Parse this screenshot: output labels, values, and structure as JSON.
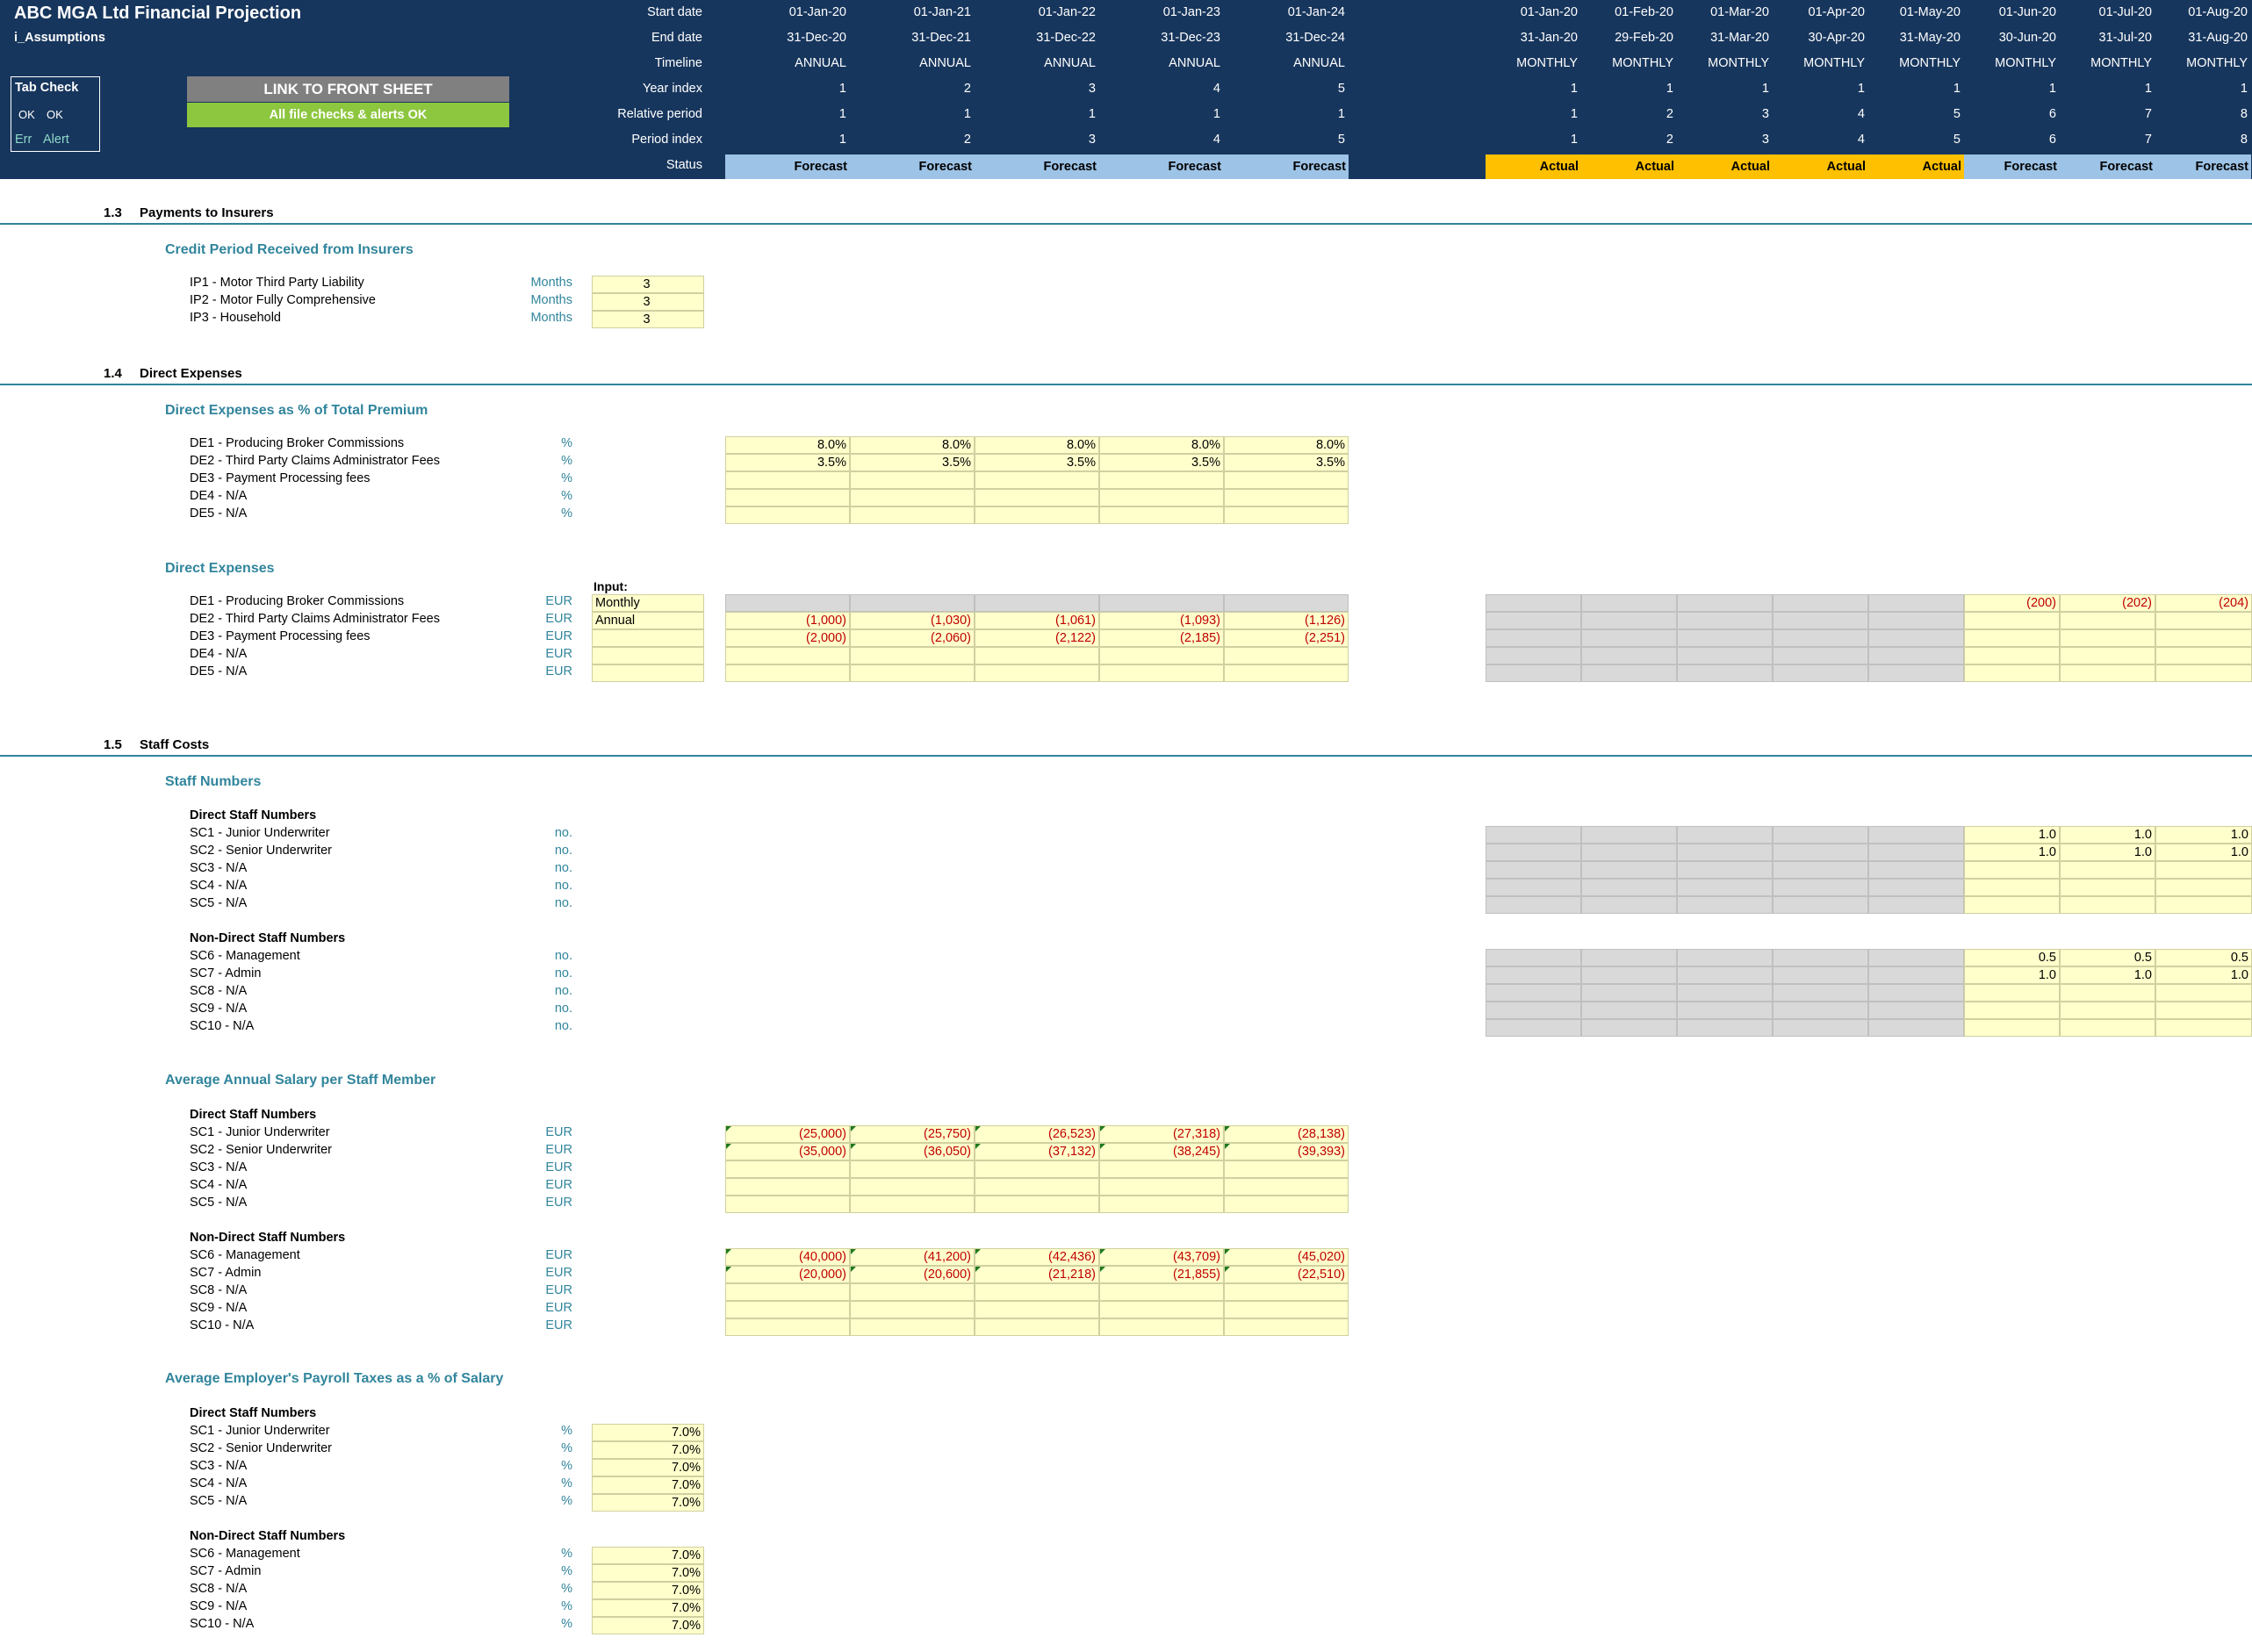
{
  "title": "ABC MGA Ltd Financial Projection",
  "sheet_name": "i_Assumptions",
  "tab_check": {
    "title": "Tab Check",
    "ok1": "OK",
    "ok2": "OK",
    "err": "Err",
    "alert": "Alert"
  },
  "link_button": "LINK TO FRONT SHEET",
  "checks_ok": "All file checks & alerts OK",
  "header_labels": [
    "Start date",
    "End date",
    "Timeline",
    "Year index",
    "Relative period",
    "Period index",
    "Status"
  ],
  "annual_columns": [
    {
      "start": "01-Jan-20",
      "end": "31-Dec-20",
      "timeline": "ANNUAL",
      "year": "1",
      "rel": "1",
      "period": "1",
      "status": "Forecast"
    },
    {
      "start": "01-Jan-21",
      "end": "31-Dec-21",
      "timeline": "ANNUAL",
      "year": "2",
      "rel": "1",
      "period": "2",
      "status": "Forecast"
    },
    {
      "start": "01-Jan-22",
      "end": "31-Dec-22",
      "timeline": "ANNUAL",
      "year": "3",
      "rel": "1",
      "period": "3",
      "status": "Forecast"
    },
    {
      "start": "01-Jan-23",
      "end": "31-Dec-23",
      "timeline": "ANNUAL",
      "year": "4",
      "rel": "1",
      "period": "4",
      "status": "Forecast"
    },
    {
      "start": "01-Jan-24",
      "end": "31-Dec-24",
      "timeline": "ANNUAL",
      "year": "5",
      "rel": "1",
      "period": "5",
      "status": "Forecast"
    }
  ],
  "monthly_columns": [
    {
      "start": "01-Jan-20",
      "end": "31-Jan-20",
      "timeline": "MONTHLY",
      "year": "1",
      "rel": "1",
      "period": "1",
      "status": "Actual"
    },
    {
      "start": "01-Feb-20",
      "end": "29-Feb-20",
      "timeline": "MONTHLY",
      "year": "1",
      "rel": "2",
      "period": "2",
      "status": "Actual"
    },
    {
      "start": "01-Mar-20",
      "end": "31-Mar-20",
      "timeline": "MONTHLY",
      "year": "1",
      "rel": "3",
      "period": "3",
      "status": "Actual"
    },
    {
      "start": "01-Apr-20",
      "end": "30-Apr-20",
      "timeline": "MONTHLY",
      "year": "1",
      "rel": "4",
      "period": "4",
      "status": "Actual"
    },
    {
      "start": "01-May-20",
      "end": "31-May-20",
      "timeline": "MONTHLY",
      "year": "1",
      "rel": "5",
      "period": "5",
      "status": "Actual"
    },
    {
      "start": "01-Jun-20",
      "end": "30-Jun-20",
      "timeline": "MONTHLY",
      "year": "1",
      "rel": "6",
      "period": "6",
      "status": "Forecast"
    },
    {
      "start": "01-Jul-20",
      "end": "31-Jul-20",
      "timeline": "MONTHLY",
      "year": "1",
      "rel": "7",
      "period": "7",
      "status": "Forecast"
    },
    {
      "start": "01-Aug-20",
      "end": "31-Aug-20",
      "timeline": "MONTHLY",
      "year": "1",
      "rel": "8",
      "period": "8",
      "status": "Forecast"
    }
  ],
  "colors": {
    "header": "#17365d",
    "forecast": "#9dc3e6",
    "actual": "#ffc000",
    "teal": "#31859c",
    "input": "#ffffcc",
    "grey": "#d9d9d9",
    "green": "#8dc63f",
    "neg": "#c00000"
  },
  "s13": {
    "num": "1.3",
    "title": "Payments to Insurers",
    "sub": "Credit Period Received from Insurers",
    "rows": [
      {
        "label": "IP1 - Motor Third Party Liability",
        "unit": "Months",
        "value": "3"
      },
      {
        "label": "IP2 - Motor Fully Comprehensive",
        "unit": "Months",
        "value": "3"
      },
      {
        "label": "IP3 - Household",
        "unit": "Months",
        "value": "3"
      }
    ]
  },
  "s14": {
    "num": "1.4",
    "title": "Direct Expenses",
    "sub1": "Direct Expenses as % of Total Premium",
    "pct_rows": [
      {
        "label": "DE1 - Producing Broker Commissions",
        "unit": "%",
        "vals": [
          "8.0%",
          "8.0%",
          "8.0%",
          "8.0%",
          "8.0%"
        ]
      },
      {
        "label": "DE2 - Third Party Claims Administrator Fees",
        "unit": "%",
        "vals": [
          "3.5%",
          "3.5%",
          "3.5%",
          "3.5%",
          "3.5%"
        ]
      },
      {
        "label": "DE3 - Payment Processing fees",
        "unit": "%",
        "vals": [
          "",
          "",
          "",
          "",
          ""
        ]
      },
      {
        "label": "DE4 - N/A",
        "unit": "%",
        "vals": [
          "",
          "",
          "",
          "",
          ""
        ]
      },
      {
        "label": "DE5 - N/A",
        "unit": "%",
        "vals": [
          "",
          "",
          "",
          "",
          ""
        ]
      }
    ],
    "sub2": "Direct Expenses",
    "input_label": "Input:",
    "eur_rows": [
      {
        "label": "DE1 - Producing Broker Commissions",
        "unit": "EUR",
        "input": "Monthly",
        "vals": [
          "",
          "",
          "",
          "",
          ""
        ],
        "monthly": [
          "",
          "",
          "",
          "",
          "",
          "(200)",
          "(202)",
          "(204)"
        ]
      },
      {
        "label": "DE2 - Third Party Claims Administrator Fees",
        "unit": "EUR",
        "input": "Annual",
        "vals": [
          "(1,000)",
          "(1,030)",
          "(1,061)",
          "(1,093)",
          "(1,126)"
        ],
        "monthly": [
          "",
          "",
          "",
          "",
          "",
          "",
          "",
          ""
        ]
      },
      {
        "label": "DE3 - Payment Processing fees",
        "unit": "EUR",
        "input": "",
        "vals": [
          "(2,000)",
          "(2,060)",
          "(2,122)",
          "(2,185)",
          "(2,251)"
        ],
        "monthly": [
          "",
          "",
          "",
          "",
          "",
          "",
          "",
          ""
        ]
      },
      {
        "label": "DE4 - N/A",
        "unit": "EUR",
        "input": "",
        "vals": [
          "",
          "",
          "",
          "",
          ""
        ],
        "monthly": [
          "",
          "",
          "",
          "",
          "",
          "",
          "",
          ""
        ]
      },
      {
        "label": "DE5 - N/A",
        "unit": "EUR",
        "input": "",
        "vals": [
          "",
          "",
          "",
          "",
          ""
        ],
        "monthly": [
          "",
          "",
          "",
          "",
          "",
          "",
          "",
          ""
        ]
      }
    ]
  },
  "s15": {
    "num": "1.5",
    "title": "Staff Costs",
    "sub_numbers": "Staff Numbers",
    "direct_title": "Direct Staff Numbers",
    "nondirect_title": "Non-Direct Staff Numbers",
    "num_direct": [
      {
        "label": "SC1 - Junior Underwriter",
        "unit": "no.",
        "monthly": [
          "",
          "",
          "",
          "",
          "",
          "1.0",
          "1.0",
          "1.0"
        ]
      },
      {
        "label": "SC2 - Senior Underwriter",
        "unit": "no.",
        "monthly": [
          "",
          "",
          "",
          "",
          "",
          "1.0",
          "1.0",
          "1.0"
        ]
      },
      {
        "label": "SC3 - N/A",
        "unit": "no.",
        "monthly": [
          "",
          "",
          "",
          "",
          "",
          "",
          "",
          ""
        ]
      },
      {
        "label": "SC4 - N/A",
        "unit": "no.",
        "monthly": [
          "",
          "",
          "",
          "",
          "",
          "",
          "",
          ""
        ]
      },
      {
        "label": "SC5 - N/A",
        "unit": "no.",
        "monthly": [
          "",
          "",
          "",
          "",
          "",
          "",
          "",
          ""
        ]
      }
    ],
    "num_nondirect": [
      {
        "label": "SC6 - Management",
        "unit": "no.",
        "monthly": [
          "",
          "",
          "",
          "",
          "",
          "0.5",
          "0.5",
          "0.5"
        ]
      },
      {
        "label": "SC7 - Admin",
        "unit": "no.",
        "monthly": [
          "",
          "",
          "",
          "",
          "",
          "1.0",
          "1.0",
          "1.0"
        ]
      },
      {
        "label": "SC8 - N/A",
        "unit": "no.",
        "monthly": [
          "",
          "",
          "",
          "",
          "",
          "",
          "",
          ""
        ]
      },
      {
        "label": "SC9 - N/A",
        "unit": "no.",
        "monthly": [
          "",
          "",
          "",
          "",
          "",
          "",
          "",
          ""
        ]
      },
      {
        "label": "SC10 - N/A",
        "unit": "no.",
        "monthly": [
          "",
          "",
          "",
          "",
          "",
          "",
          "",
          ""
        ]
      }
    ],
    "sub_salary": "Average Annual Salary per Staff Member",
    "sal_direct": [
      {
        "label": "SC1 - Junior Underwriter",
        "unit": "EUR",
        "vals": [
          "(25,000)",
          "(25,750)",
          "(26,523)",
          "(27,318)",
          "(28,138)"
        ]
      },
      {
        "label": "SC2 - Senior Underwriter",
        "unit": "EUR",
        "vals": [
          "(35,000)",
          "(36,050)",
          "(37,132)",
          "(38,245)",
          "(39,393)"
        ]
      },
      {
        "label": "SC3 - N/A",
        "unit": "EUR",
        "vals": [
          "",
          "",
          "",
          "",
          ""
        ]
      },
      {
        "label": "SC4 - N/A",
        "unit": "EUR",
        "vals": [
          "",
          "",
          "",
          "",
          ""
        ]
      },
      {
        "label": "SC5 - N/A",
        "unit": "EUR",
        "vals": [
          "",
          "",
          "",
          "",
          ""
        ]
      }
    ],
    "sal_nondirect": [
      {
        "label": "SC6 - Management",
        "unit": "EUR",
        "vals": [
          "(40,000)",
          "(41,200)",
          "(42,436)",
          "(43,709)",
          "(45,020)"
        ]
      },
      {
        "label": "SC7 - Admin",
        "unit": "EUR",
        "vals": [
          "(20,000)",
          "(20,600)",
          "(21,218)",
          "(21,855)",
          "(22,510)"
        ]
      },
      {
        "label": "SC8 - N/A",
        "unit": "EUR",
        "vals": [
          "",
          "",
          "",
          "",
          ""
        ]
      },
      {
        "label": "SC9 - N/A",
        "unit": "EUR",
        "vals": [
          "",
          "",
          "",
          "",
          ""
        ]
      },
      {
        "label": "SC10 - N/A",
        "unit": "EUR",
        "vals": [
          "",
          "",
          "",
          "",
          ""
        ]
      }
    ],
    "sub_tax": "Average Employer's Payroll Taxes as a % of Salary",
    "tax_direct": [
      {
        "label": "SC1 - Junior Underwriter",
        "unit": "%",
        "value": "7.0%"
      },
      {
        "label": "SC2 - Senior Underwriter",
        "unit": "%",
        "value": "7.0%"
      },
      {
        "label": "SC3 - N/A",
        "unit": "%",
        "value": "7.0%"
      },
      {
        "label": "SC4 - N/A",
        "unit": "%",
        "value": "7.0%"
      },
      {
        "label": "SC5 - N/A",
        "unit": "%",
        "value": "7.0%"
      }
    ],
    "tax_nondirect": [
      {
        "label": "SC6 - Management",
        "unit": "%",
        "value": "7.0%"
      },
      {
        "label": "SC7 - Admin",
        "unit": "%",
        "value": "7.0%"
      },
      {
        "label": "SC8 - N/A",
        "unit": "%",
        "value": "7.0%"
      },
      {
        "label": "SC9 - N/A",
        "unit": "%",
        "value": "7.0%"
      },
      {
        "label": "SC10 - N/A",
        "unit": "%",
        "value": "7.0%"
      }
    ]
  }
}
